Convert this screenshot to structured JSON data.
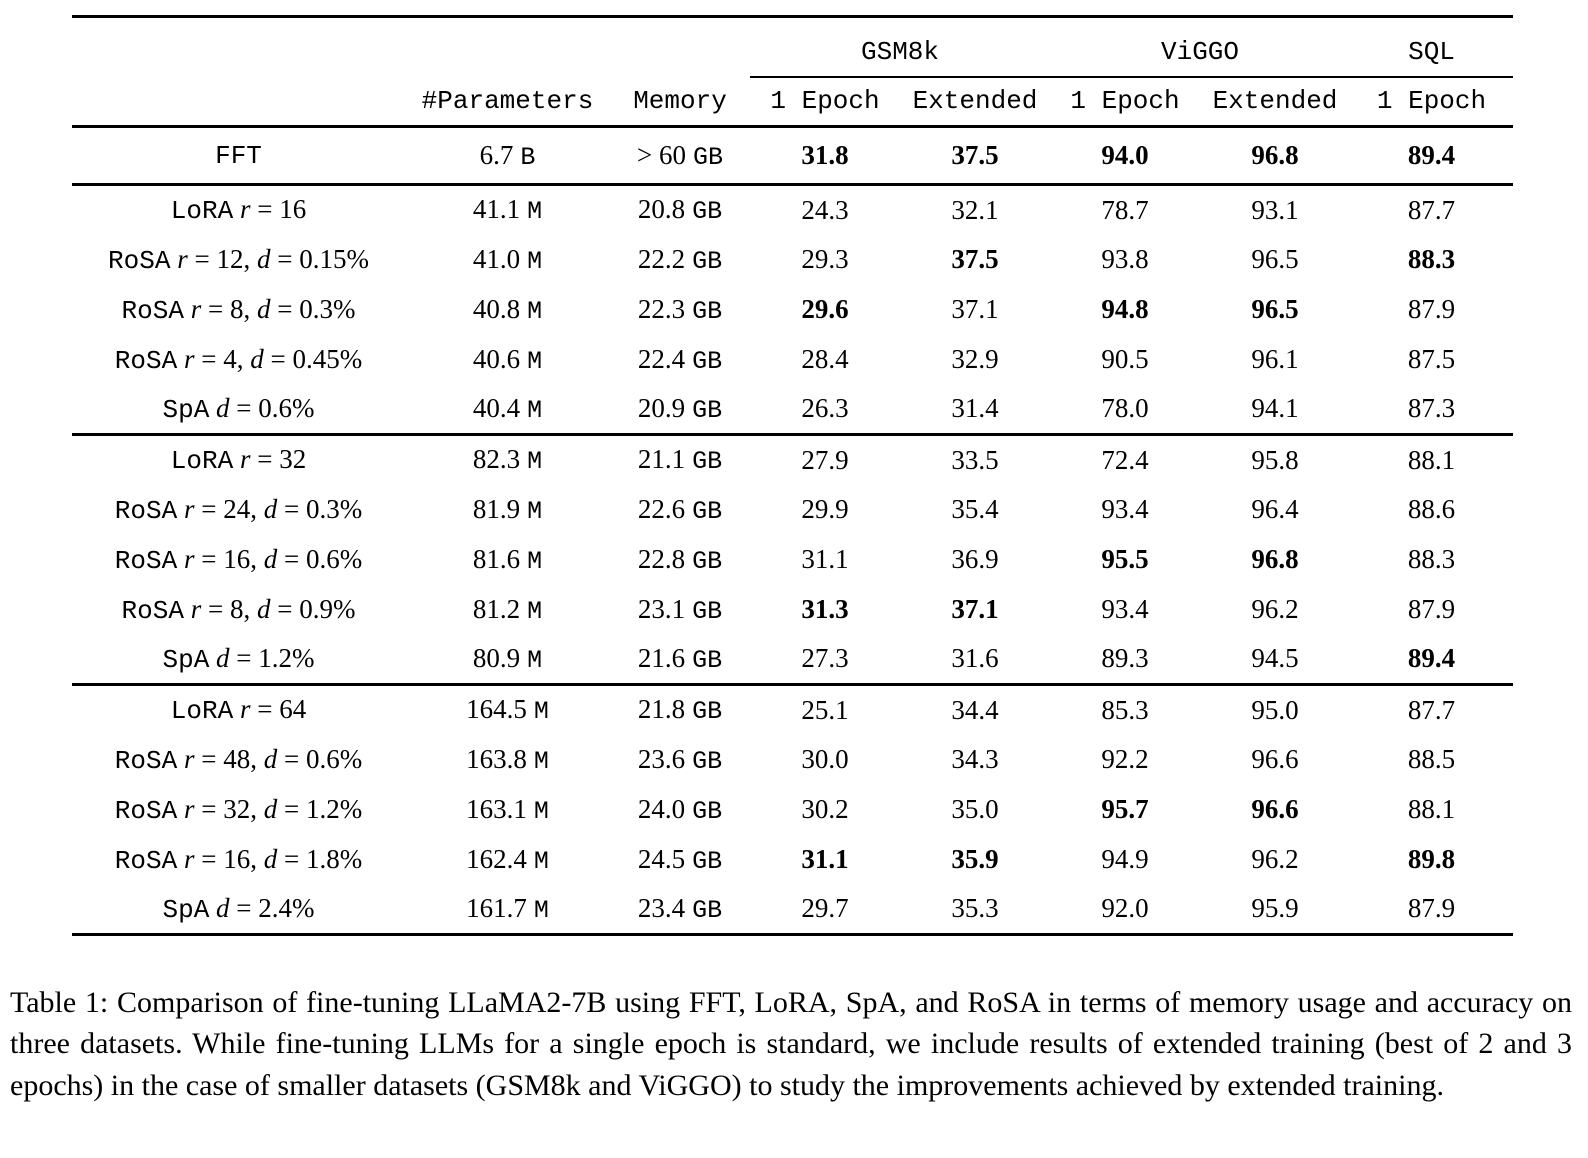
{
  "page": {
    "background_color": "#ffffff",
    "text_color": "#000000"
  },
  "table": {
    "column_groups": [
      {
        "label": "GSM8k",
        "span": 2
      },
      {
        "label": "ViGGO",
        "span": 2
      },
      {
        "label": "SQL",
        "span": 1
      }
    ],
    "column_headers": [
      "#Parameters",
      "Memory",
      "1 Epoch",
      "Extended",
      "1 Epoch",
      "Extended",
      "1 Epoch"
    ],
    "groups": [
      {
        "rows": [
          {
            "method": "FFT",
            "config": "",
            "params": "6.7 B",
            "memory": "> 60 GB",
            "scores": [
              "31.8",
              "37.5",
              "94.0",
              "96.8",
              "89.4"
            ],
            "bold": [
              0,
              1,
              2,
              3,
              4
            ]
          }
        ]
      },
      {
        "rows": [
          {
            "method": "LoRA",
            "config": "r = 16",
            "params": "41.1 M",
            "memory": "20.8 GB",
            "scores": [
              "24.3",
              "32.1",
              "78.7",
              "93.1",
              "87.7"
            ],
            "bold": []
          },
          {
            "method": "RoSA",
            "config": "r = 12, d = 0.15%",
            "params": "41.0 M",
            "memory": "22.2 GB",
            "scores": [
              "29.3",
              "37.5",
              "93.8",
              "96.5",
              "88.3"
            ],
            "bold": [
              1,
              4
            ]
          },
          {
            "method": "RoSA",
            "config": "r = 8, d = 0.3%",
            "params": "40.8 M",
            "memory": "22.3 GB",
            "scores": [
              "29.6",
              "37.1",
              "94.8",
              "96.5",
              "87.9"
            ],
            "bold": [
              0,
              2,
              3
            ]
          },
          {
            "method": "RoSA",
            "config": "r = 4, d = 0.45%",
            "params": "40.6 M",
            "memory": "22.4 GB",
            "scores": [
              "28.4",
              "32.9",
              "90.5",
              "96.1",
              "87.5"
            ],
            "bold": []
          },
          {
            "method": "SpA",
            "config": "d = 0.6%",
            "params": "40.4 M",
            "memory": "20.9 GB",
            "scores": [
              "26.3",
              "31.4",
              "78.0",
              "94.1",
              "87.3"
            ],
            "bold": []
          }
        ]
      },
      {
        "rows": [
          {
            "method": "LoRA",
            "config": "r = 32",
            "params": "82.3 M",
            "memory": "21.1 GB",
            "scores": [
              "27.9",
              "33.5",
              "72.4",
              "95.8",
              "88.1"
            ],
            "bold": []
          },
          {
            "method": "RoSA",
            "config": "r = 24, d = 0.3%",
            "params": "81.9 M",
            "memory": "22.6 GB",
            "scores": [
              "29.9",
              "35.4",
              "93.4",
              "96.4",
              "88.6"
            ],
            "bold": []
          },
          {
            "method": "RoSA",
            "config": "r = 16, d = 0.6%",
            "params": "81.6 M",
            "memory": "22.8 GB",
            "scores": [
              "31.1",
              "36.9",
              "95.5",
              "96.8",
              "88.3"
            ],
            "bold": [
              2,
              3
            ]
          },
          {
            "method": "RoSA",
            "config": "r = 8, d = 0.9%",
            "params": "81.2 M",
            "memory": "23.1 GB",
            "scores": [
              "31.3",
              "37.1",
              "93.4",
              "96.2",
              "87.9"
            ],
            "bold": [
              0,
              1
            ]
          },
          {
            "method": "SpA",
            "config": "d = 1.2%",
            "params": "80.9 M",
            "memory": "21.6 GB",
            "scores": [
              "27.3",
              "31.6",
              "89.3",
              "94.5",
              "89.4"
            ],
            "bold": [
              4
            ]
          }
        ]
      },
      {
        "rows": [
          {
            "method": "LoRA",
            "config": "r = 64",
            "params": "164.5 M",
            "memory": "21.8 GB",
            "scores": [
              "25.1",
              "34.4",
              "85.3",
              "95.0",
              "87.7"
            ],
            "bold": []
          },
          {
            "method": "RoSA",
            "config": "r = 48, d = 0.6%",
            "params": "163.8 M",
            "memory": "23.6 GB",
            "scores": [
              "30.0",
              "34.3",
              "92.2",
              "96.6",
              "88.5"
            ],
            "bold": []
          },
          {
            "method": "RoSA",
            "config": "r = 32, d = 1.2%",
            "params": "163.1 M",
            "memory": "24.0 GB",
            "scores": [
              "30.2",
              "35.0",
              "95.7",
              "96.6",
              "88.1"
            ],
            "bold": [
              2,
              3
            ]
          },
          {
            "method": "RoSA",
            "config": "r = 16, d = 1.8%",
            "params": "162.4 M",
            "memory": "24.5 GB",
            "scores": [
              "31.1",
              "35.9",
              "94.9",
              "96.2",
              "89.8"
            ],
            "bold": [
              0,
              1,
              4
            ]
          },
          {
            "method": "SpA",
            "config": "d = 2.4%",
            "params": "161.7 M",
            "memory": "23.4 GB",
            "scores": [
              "29.7",
              "35.3",
              "92.0",
              "95.9",
              "87.9"
            ],
            "bold": []
          }
        ]
      }
    ]
  },
  "caption": {
    "text": "Table 1: Comparison of fine-tuning LLaMA2-7B using FFT, LoRA, SpA, and RoSA in terms of memory usage and accuracy on three datasets. While fine-tuning LLMs for a single epoch is standard, we include results of extended training (best of 2 and 3 epochs) in the case of smaller datasets (GSM8k and ViGGO) to study the improvements achieved by extended training."
  }
}
